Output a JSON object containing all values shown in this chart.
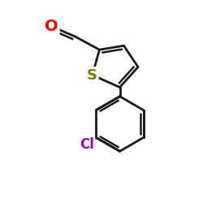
{
  "background_color": "#ffffff",
  "bond_color": "#1a1a1a",
  "bond_width": 2.0,
  "atom_colors": {
    "O": "#ff0000",
    "S": "#808000",
    "Cl": "#9900cc"
  },
  "figsize": [
    2.5,
    2.5
  ],
  "dpi": 100,
  "xlim": [
    0,
    10
  ],
  "ylim": [
    0,
    10
  ]
}
